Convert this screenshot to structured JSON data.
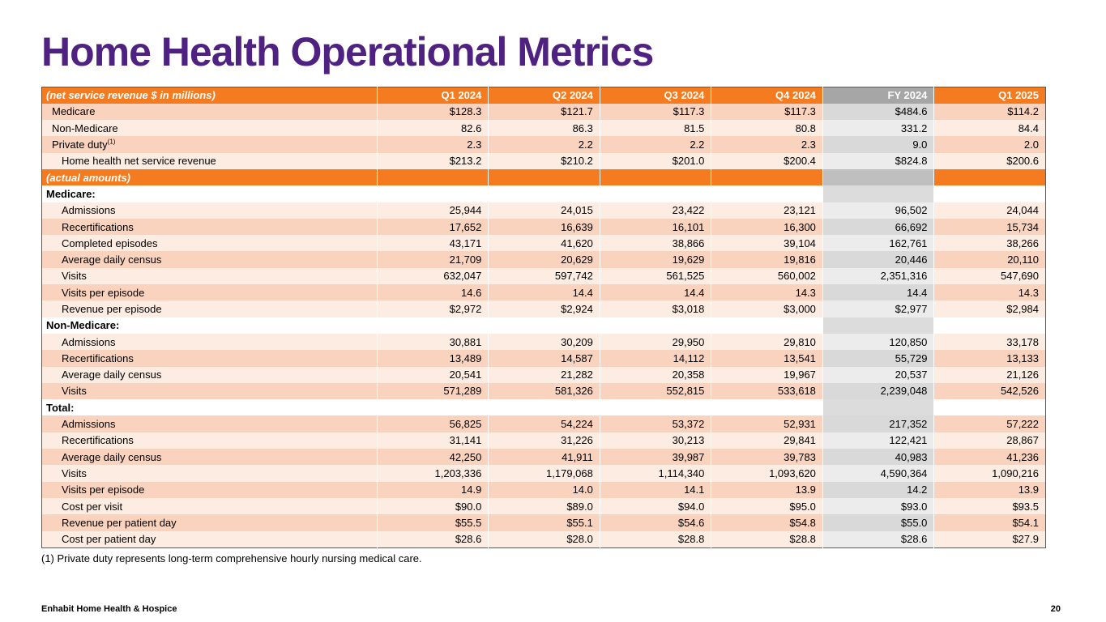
{
  "page": {
    "title": "Home Health Operational Metrics",
    "footnote": "(1) Private duty represents long-term comprehensive hourly nursing medical care.",
    "footer_left": "Enhabit Home Health & Hospice",
    "page_number": "20"
  },
  "colors": {
    "accent_orange": "#F47B20",
    "title_purple": "#4F2282",
    "row_shade_dark": "#FAD3BF",
    "row_shade_light": "#FDECE2",
    "fy_header_gray": "#A6A6A6",
    "fy_band_gray": "#BFBFBF",
    "fy_cell_dark_gray": "#D9D9D9",
    "fy_cell_light_gray": "#ECECEC"
  },
  "table": {
    "fy_column_index": 4,
    "header": {
      "label": "(net service revenue $ in millions)",
      "columns": [
        "Q1 2024",
        "Q2 2024",
        "Q3 2024",
        "Q4 2024",
        "FY 2024",
        "Q1 2025"
      ]
    },
    "rows": [
      {
        "type": "data",
        "indent": 1,
        "label": "Medicare",
        "values": [
          "$128.3",
          "$121.7",
          "$117.3",
          "$117.3",
          "$484.6",
          "$114.2"
        ]
      },
      {
        "type": "data",
        "indent": 1,
        "label": "Non-Medicare",
        "values": [
          "82.6",
          "86.3",
          "81.5",
          "80.8",
          "331.2",
          "84.4"
        ]
      },
      {
        "type": "data",
        "indent": 1,
        "label": "Private duty",
        "sup": "(1)",
        "values": [
          "2.3",
          "2.2",
          "2.2",
          "2.3",
          "9.0",
          "2.0"
        ]
      },
      {
        "type": "data",
        "indent": 2,
        "label": "Home health net service revenue",
        "values": [
          "$213.2",
          "$210.2",
          "$201.0",
          "$200.4",
          "$824.8",
          "$200.6"
        ]
      },
      {
        "type": "band",
        "indent": 0,
        "label": "(actual amounts)",
        "values": [
          "",
          "",
          "",
          "",
          "",
          ""
        ]
      },
      {
        "type": "section",
        "indent": 0,
        "label": "Medicare:",
        "values": [
          "",
          "",
          "",
          "",
          "",
          ""
        ]
      },
      {
        "type": "data",
        "indent": 2,
        "label": "Admissions",
        "values": [
          "25,944",
          "24,015",
          "23,422",
          "23,121",
          "96,502",
          "24,044"
        ]
      },
      {
        "type": "data",
        "indent": 2,
        "label": "Recertifications",
        "values": [
          "17,652",
          "16,639",
          "16,101",
          "16,300",
          "66,692",
          "15,734"
        ]
      },
      {
        "type": "data",
        "indent": 2,
        "label": "Completed episodes",
        "values": [
          "43,171",
          "41,620",
          "38,866",
          "39,104",
          "162,761",
          "38,266"
        ]
      },
      {
        "type": "data",
        "indent": 2,
        "label": "Average daily census",
        "values": [
          "21,709",
          "20,629",
          "19,629",
          "19,816",
          "20,446",
          "20,110"
        ]
      },
      {
        "type": "data",
        "indent": 2,
        "label": "Visits",
        "values": [
          "632,047",
          "597,742",
          "561,525",
          "560,002",
          "2,351,316",
          "547,690"
        ]
      },
      {
        "type": "data",
        "indent": 2,
        "label": "Visits per episode",
        "values": [
          "14.6",
          "14.4",
          "14.4",
          "14.3",
          "14.4",
          "14.3"
        ]
      },
      {
        "type": "data",
        "indent": 2,
        "label": "Revenue per episode",
        "values": [
          "$2,972",
          "$2,924",
          "$3,018",
          "$3,000",
          "$2,977",
          "$2,984"
        ]
      },
      {
        "type": "section",
        "indent": 0,
        "label": "Non-Medicare:",
        "values": [
          "",
          "",
          "",
          "",
          "",
          ""
        ]
      },
      {
        "type": "data",
        "indent": 2,
        "label": "Admissions",
        "values": [
          "30,881",
          "30,209",
          "29,950",
          "29,810",
          "120,850",
          "33,178"
        ]
      },
      {
        "type": "data",
        "indent": 2,
        "label": "Recertifications",
        "values": [
          "13,489",
          "14,587",
          "14,112",
          "13,541",
          "55,729",
          "13,133"
        ]
      },
      {
        "type": "data",
        "indent": 2,
        "label": "Average daily census",
        "values": [
          "20,541",
          "21,282",
          "20,358",
          "19,967",
          "20,537",
          "21,126"
        ]
      },
      {
        "type": "data",
        "indent": 2,
        "label": "Visits",
        "values": [
          "571,289",
          "581,326",
          "552,815",
          "533,618",
          "2,239,048",
          "542,526"
        ]
      },
      {
        "type": "section",
        "indent": 0,
        "label": "Total:",
        "values": [
          "",
          "",
          "",
          "",
          "",
          ""
        ]
      },
      {
        "type": "data",
        "indent": 2,
        "label": "Admissions",
        "values": [
          "56,825",
          "54,224",
          "53,372",
          "52,931",
          "217,352",
          "57,222"
        ]
      },
      {
        "type": "data",
        "indent": 2,
        "label": "Recertifications",
        "values": [
          "31,141",
          "31,226",
          "30,213",
          "29,841",
          "122,421",
          "28,867"
        ]
      },
      {
        "type": "data",
        "indent": 2,
        "label": "Average daily census",
        "values": [
          "42,250",
          "41,911",
          "39,987",
          "39,783",
          "40,983",
          "41,236"
        ]
      },
      {
        "type": "data",
        "indent": 2,
        "label": "Visits",
        "values": [
          "1,203,336",
          "1,179,068",
          "1,114,340",
          "1,093,620",
          "4,590,364",
          "1,090,216"
        ]
      },
      {
        "type": "data",
        "indent": 2,
        "label": "Visits per episode",
        "values": [
          "14.9",
          "14.0",
          "14.1",
          "13.9",
          "14.2",
          "13.9"
        ]
      },
      {
        "type": "data",
        "indent": 2,
        "label": "Cost per visit",
        "values": [
          "$90.0",
          "$89.0",
          "$94.0",
          "$95.0",
          "$93.0",
          "$93.5"
        ]
      },
      {
        "type": "data",
        "indent": 2,
        "label": "Revenue per patient day",
        "values": [
          "$55.5",
          "$55.1",
          "$54.6",
          "$54.8",
          "$55.0",
          "$54.1"
        ]
      },
      {
        "type": "data",
        "indent": 2,
        "label": "Cost per patient day",
        "values": [
          "$28.6",
          "$28.0",
          "$28.8",
          "$28.8",
          "$28.6",
          "$27.9"
        ]
      }
    ]
  }
}
